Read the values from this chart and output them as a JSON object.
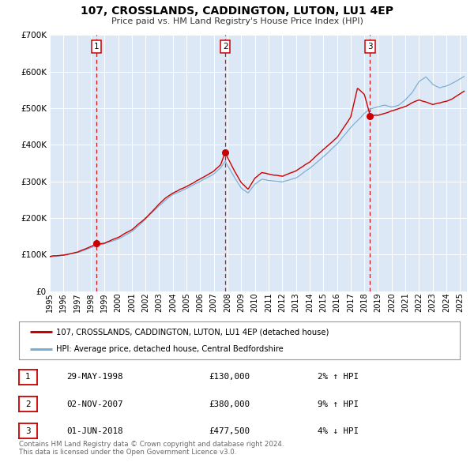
{
  "title": "107, CROSSLANDS, CADDINGTON, LUTON, LU1 4EP",
  "subtitle": "Price paid vs. HM Land Registry's House Price Index (HPI)",
  "background_color": "#ffffff",
  "plot_bg_color": "#dce8f5",
  "red_line_color": "#cc0000",
  "blue_line_color": "#7aadd4",
  "ylim": [
    0,
    700000
  ],
  "yticks": [
    0,
    100000,
    200000,
    300000,
    400000,
    500000,
    600000,
    700000
  ],
  "xlim_start": 1995.0,
  "xlim_end": 2025.5,
  "xticks": [
    1995,
    1996,
    1997,
    1998,
    1999,
    2000,
    2001,
    2002,
    2003,
    2004,
    2005,
    2006,
    2007,
    2008,
    2009,
    2010,
    2011,
    2012,
    2013,
    2014,
    2015,
    2016,
    2017,
    2018,
    2019,
    2020,
    2021,
    2022,
    2023,
    2024,
    2025
  ],
  "sale_markers": [
    {
      "num": 1,
      "year": 1998.41,
      "price": 130000,
      "date": "29-MAY-1998",
      "pct": "2%",
      "dir": "↑"
    },
    {
      "num": 2,
      "year": 2007.83,
      "price": 380000,
      "date": "02-NOV-2007",
      "pct": "9%",
      "dir": "↑"
    },
    {
      "num": 3,
      "year": 2018.42,
      "price": 477500,
      "date": "01-JUN-2018",
      "pct": "4%",
      "dir": "↓"
    }
  ],
  "legend_label_red": "107, CROSSLANDS, CADDINGTON, LUTON, LU1 4EP (detached house)",
  "legend_label_blue": "HPI: Average price, detached house, Central Bedfordshire",
  "table_rows": [
    {
      "num": "1",
      "date": "29-MAY-1998",
      "price": "£130,000",
      "pct": "2% ↑ HPI"
    },
    {
      "num": "2",
      "date": "02-NOV-2007",
      "price": "£380,000",
      "pct": "9% ↑ HPI"
    },
    {
      "num": "3",
      "date": "01-JUN-2018",
      "price": "£477,500",
      "pct": "4% ↓ HPI"
    }
  ],
  "footer": "Contains HM Land Registry data © Crown copyright and database right 2024.\nThis data is licensed under the Open Government Licence v3.0.",
  "red_waypoints": [
    [
      1995.0,
      95000
    ],
    [
      1996.0,
      100000
    ],
    [
      1997.0,
      108000
    ],
    [
      1998.41,
      130000
    ],
    [
      1999.0,
      133000
    ],
    [
      2000.0,
      148000
    ],
    [
      2001.0,
      168000
    ],
    [
      2002.0,
      200000
    ],
    [
      2003.0,
      238000
    ],
    [
      2003.5,
      255000
    ],
    [
      2004.0,
      268000
    ],
    [
      2005.0,
      285000
    ],
    [
      2006.0,
      305000
    ],
    [
      2007.0,
      328000
    ],
    [
      2007.5,
      345000
    ],
    [
      2007.83,
      380000
    ],
    [
      2008.0,
      365000
    ],
    [
      2008.5,
      330000
    ],
    [
      2009.0,
      298000
    ],
    [
      2009.5,
      280000
    ],
    [
      2010.0,
      310000
    ],
    [
      2010.5,
      325000
    ],
    [
      2011.0,
      320000
    ],
    [
      2012.0,
      315000
    ],
    [
      2013.0,
      330000
    ],
    [
      2014.0,
      355000
    ],
    [
      2015.0,
      388000
    ],
    [
      2016.0,
      420000
    ],
    [
      2017.0,
      475000
    ],
    [
      2017.5,
      553000
    ],
    [
      2018.0,
      535000
    ],
    [
      2018.42,
      477500
    ],
    [
      2019.0,
      478000
    ],
    [
      2019.5,
      482000
    ],
    [
      2020.0,
      490000
    ],
    [
      2020.5,
      495000
    ],
    [
      2021.0,
      500000
    ],
    [
      2021.5,
      510000
    ],
    [
      2022.0,
      518000
    ],
    [
      2022.5,
      512000
    ],
    [
      2023.0,
      505000
    ],
    [
      2023.5,
      508000
    ],
    [
      2024.0,
      512000
    ],
    [
      2024.5,
      520000
    ],
    [
      2025.3,
      540000
    ]
  ],
  "blue_waypoints": [
    [
      1995.0,
      93000
    ],
    [
      1996.0,
      98000
    ],
    [
      1997.0,
      105000
    ],
    [
      1998.41,
      122000
    ],
    [
      1999.0,
      128000
    ],
    [
      2000.0,
      142000
    ],
    [
      2001.0,
      162000
    ],
    [
      2002.0,
      195000
    ],
    [
      2003.0,
      232000
    ],
    [
      2003.5,
      248000
    ],
    [
      2004.0,
      262000
    ],
    [
      2005.0,
      278000
    ],
    [
      2006.0,
      298000
    ],
    [
      2007.0,
      318000
    ],
    [
      2007.5,
      335000
    ],
    [
      2007.83,
      352000
    ],
    [
      2008.0,
      340000
    ],
    [
      2008.5,
      308000
    ],
    [
      2009.0,
      278000
    ],
    [
      2009.5,
      265000
    ],
    [
      2010.0,
      290000
    ],
    [
      2010.5,
      302000
    ],
    [
      2011.0,
      298000
    ],
    [
      2012.0,
      293000
    ],
    [
      2013.0,
      305000
    ],
    [
      2014.0,
      330000
    ],
    [
      2015.0,
      360000
    ],
    [
      2016.0,
      395000
    ],
    [
      2017.0,
      440000
    ],
    [
      2018.0,
      480000
    ],
    [
      2018.42,
      492000
    ],
    [
      2019.0,
      498000
    ],
    [
      2019.5,
      502000
    ],
    [
      2020.0,
      495000
    ],
    [
      2020.5,
      500000
    ],
    [
      2021.0,
      515000
    ],
    [
      2021.5,
      535000
    ],
    [
      2022.0,
      565000
    ],
    [
      2022.5,
      578000
    ],
    [
      2023.0,
      558000
    ],
    [
      2023.5,
      548000
    ],
    [
      2024.0,
      552000
    ],
    [
      2024.5,
      560000
    ],
    [
      2025.3,
      578000
    ]
  ]
}
